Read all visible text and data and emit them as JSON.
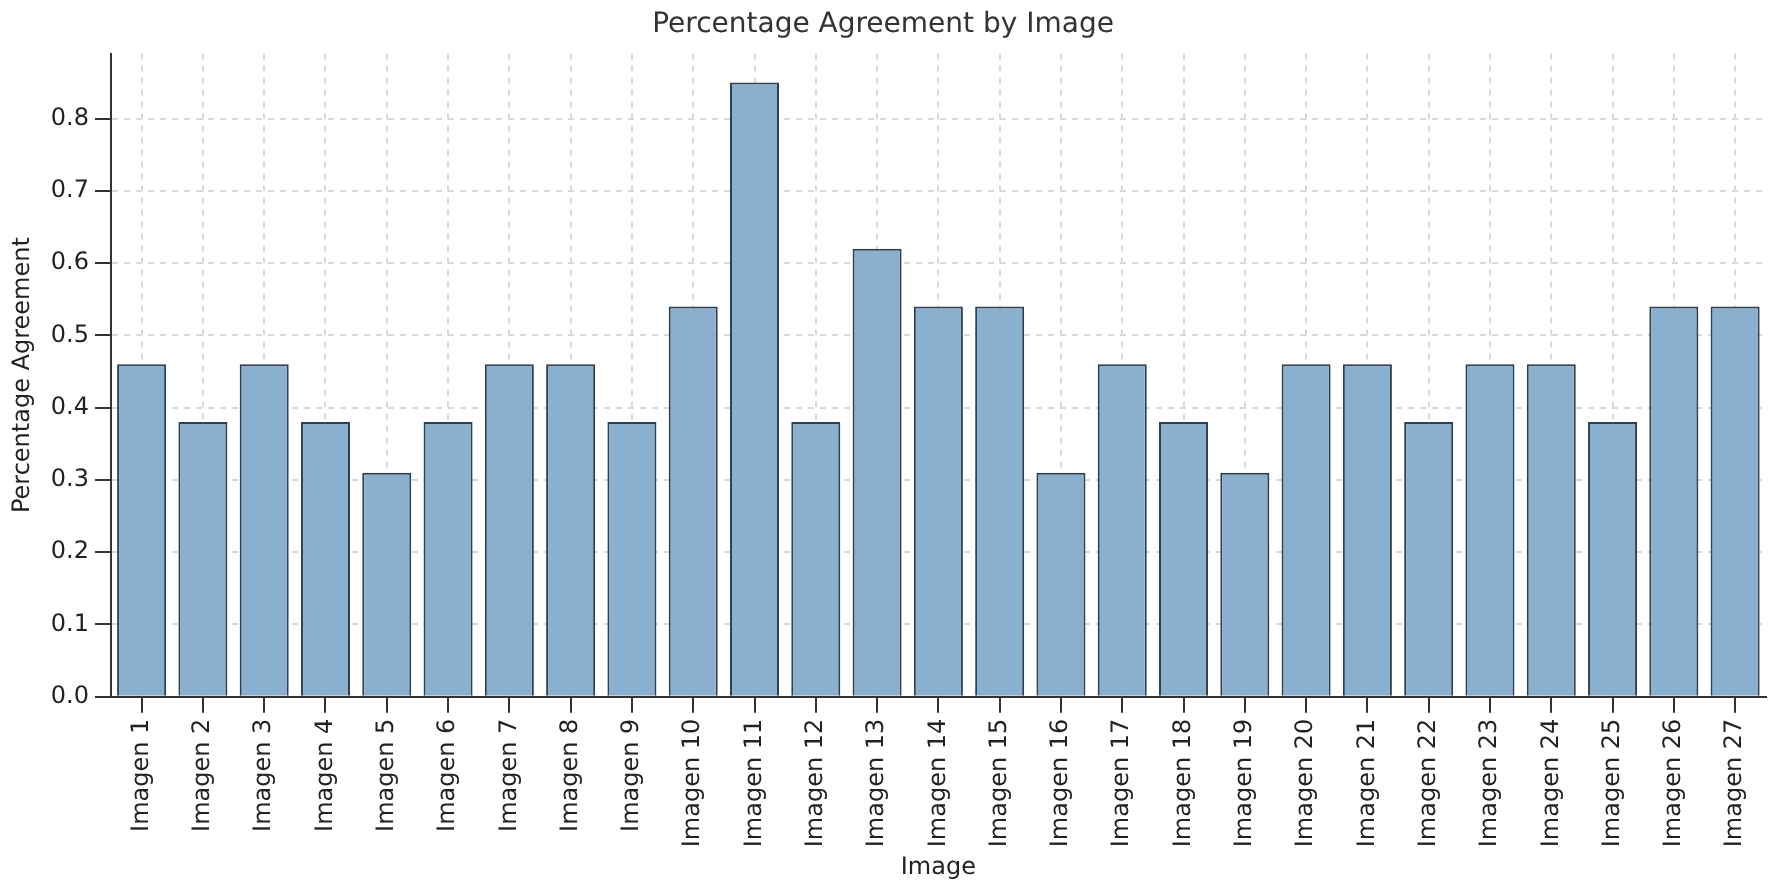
{
  "chart_data": {
    "type": "bar",
    "title": "Percentage Agreement by Image",
    "xlabel": "Image",
    "ylabel": "Percentage Agreement",
    "categories": [
      "Imagen 1",
      "Imagen 2",
      "Imagen 3",
      "Imagen 4",
      "Imagen 5",
      "Imagen 6",
      "Imagen 7",
      "Imagen 8",
      "Imagen 9",
      "Imagen 10",
      "Imagen 11",
      "Imagen 12",
      "Imagen 13",
      "Imagen 14",
      "Imagen 15",
      "Imagen 16",
      "Imagen 17",
      "Imagen 18",
      "Imagen 19",
      "Imagen 20",
      "Imagen 21",
      "Imagen 22",
      "Imagen 23",
      "Imagen 24",
      "Imagen 25",
      "Imagen 26",
      "Imagen 27"
    ],
    "values": [
      0.46,
      0.38,
      0.46,
      0.38,
      0.31,
      0.38,
      0.46,
      0.46,
      0.38,
      0.54,
      0.85,
      0.38,
      0.62,
      0.54,
      0.54,
      0.31,
      0.46,
      0.38,
      0.31,
      0.46,
      0.46,
      0.38,
      0.46,
      0.46,
      0.38,
      0.54,
      0.54
    ],
    "color": "#8ab0d0",
    "ylim": [
      0,
      0.89
    ],
    "yticks": [
      {
        "value": 0,
        "label": "0.0"
      },
      0.1,
      0.2,
      0.3,
      0.4,
      0.5,
      0.6,
      0.7,
      0.8
    ],
    "grid": true
  }
}
